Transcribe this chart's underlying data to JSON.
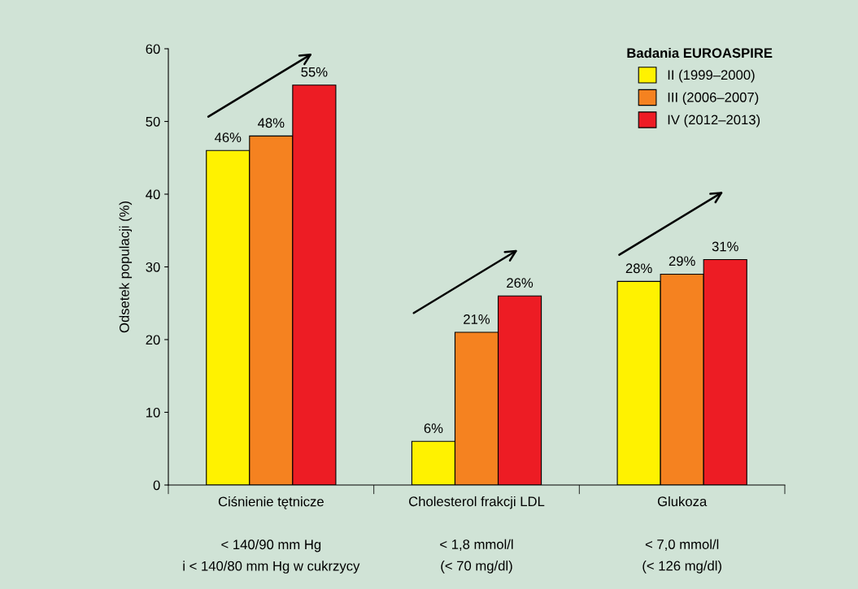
{
  "chart_data": {
    "type": "bar",
    "categories": [
      "Ciśnienie tętnicze\n\n< 140/90 mm Hg\ni < 140/80 mm Hg w cukrzycy",
      "Cholesterol frakcji LDL\n\n< 1,8 mmol/l\n(< 70 mg/dl)",
      "Glukoza\n\n< 7,0 mmol/l\n(< 126 mg/dl)"
    ],
    "series": [
      {
        "name": "II (1999–2000)",
        "color": "#fff200",
        "values": [
          46,
          6,
          28
        ],
        "value_labels": [
          "46%",
          "6%",
          "28%"
        ]
      },
      {
        "name": "III (2006–2007)",
        "color": "#f58220",
        "values": [
          48,
          21,
          29
        ],
        "value_labels": [
          "48%",
          "21%",
          "29%"
        ]
      },
      {
        "name": "IV (2012–2013)",
        "color": "#ed1c24",
        "values": [
          55,
          26,
          31
        ],
        "value_labels": [
          "55%",
          "26%",
          "31%"
        ]
      }
    ],
    "ylabel": "Odsetek populacji (%)",
    "legend_title": "Badania EUROASPIRE",
    "legend": "top right",
    "ylim": [
      0,
      60
    ],
    "yticks": [
      0,
      10,
      20,
      30,
      40,
      50,
      60
    ],
    "grid": false
  }
}
